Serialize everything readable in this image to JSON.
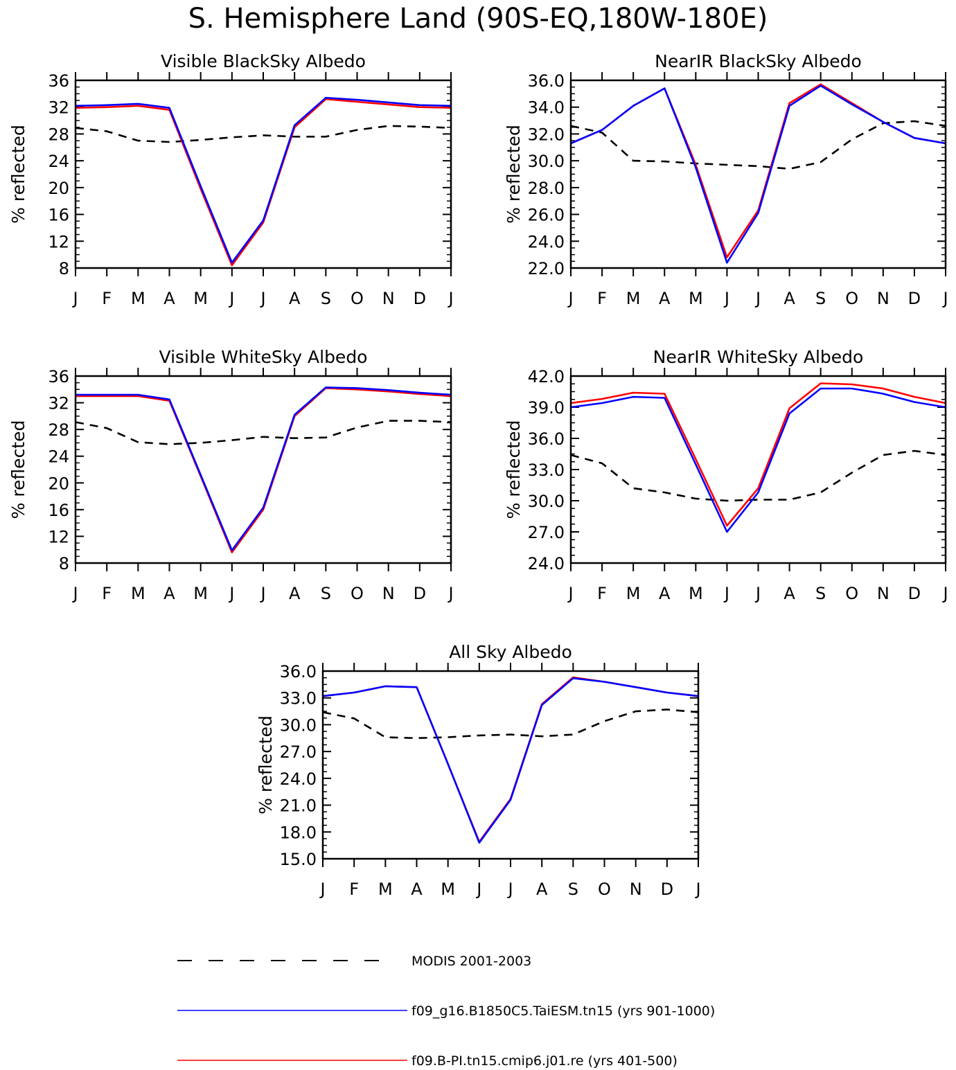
{
  "title": "S. Hemisphere Land (90S-EQ,180W-180E)",
  "colors": {
    "modis": "#000000",
    "taiesm": "#0000ff",
    "cmip6": "#ff0000"
  },
  "legend": [
    {
      "key": "modis",
      "label": "MODIS 2001-2003",
      "style": "dashed"
    },
    {
      "key": "taiesm",
      "label": "f09_g16.B1850C5.TaiESM.tn15 (yrs 901-1000)",
      "style": "solid"
    },
    {
      "key": "cmip6",
      "label": "f09.B-PI.tn15.cmip6.j01.re (yrs 401-500)",
      "style": "solid"
    }
  ],
  "chart_data": [
    {
      "type": "line",
      "title": "Visible BlackSky Albedo",
      "ylabel": "% reflected",
      "categories": [
        "J",
        "F",
        "M",
        "A",
        "M",
        "J",
        "J",
        "A",
        "S",
        "O",
        "N",
        "D",
        "J"
      ],
      "ylim": [
        8,
        36
      ],
      "yticks": [
        "8",
        "12",
        "16",
        "20",
        "24",
        "28",
        "32",
        "36"
      ],
      "series": [
        {
          "key": "modis",
          "values": [
            28.9,
            28.4,
            27.0,
            26.8,
            27.1,
            27.5,
            27.8,
            27.6,
            27.6,
            28.6,
            29.2,
            29.1,
            28.9
          ]
        },
        {
          "key": "cmip6",
          "values": [
            31.9,
            32.0,
            32.2,
            31.6,
            19.8,
            8.4,
            14.8,
            29.0,
            33.2,
            32.8,
            32.4,
            32.0,
            31.9
          ]
        },
        {
          "key": "taiesm",
          "values": [
            32.2,
            32.3,
            32.5,
            31.9,
            20.2,
            8.8,
            15.1,
            29.3,
            33.4,
            33.1,
            32.7,
            32.3,
            32.2
          ]
        }
      ]
    },
    {
      "type": "line",
      "title": "NearIR BlackSky Albedo",
      "ylabel": "% reflected",
      "categories": [
        "J",
        "F",
        "M",
        "A",
        "M",
        "J",
        "J",
        "A",
        "S",
        "O",
        "N",
        "D",
        "J"
      ],
      "ylim": [
        22,
        36
      ],
      "yticks": [
        "22.0",
        "24.0",
        "26.0",
        "28.0",
        "30.0",
        "32.0",
        "34.0",
        "36.0"
      ],
      "series": [
        {
          "key": "modis",
          "values": [
            32.6,
            32.1,
            30.0,
            29.95,
            29.8,
            29.7,
            29.6,
            29.4,
            29.9,
            31.6,
            32.8,
            32.95,
            32.6
          ]
        },
        {
          "key": "cmip6",
          "values": [
            31.3,
            32.3,
            34.1,
            35.4,
            29.7,
            22.8,
            26.3,
            34.3,
            35.7,
            34.3,
            32.9,
            31.7,
            31.3
          ]
        },
        {
          "key": "taiesm",
          "values": [
            31.3,
            32.3,
            34.1,
            35.4,
            29.5,
            22.4,
            26.1,
            34.1,
            35.6,
            34.2,
            32.9,
            31.7,
            31.3
          ]
        }
      ]
    },
    {
      "type": "line",
      "title": "Visible WhiteSky Albedo",
      "ylabel": "% reflected",
      "categories": [
        "J",
        "F",
        "M",
        "A",
        "M",
        "J",
        "J",
        "A",
        "S",
        "O",
        "N",
        "D",
        "J"
      ],
      "ylim": [
        8,
        36
      ],
      "yticks": [
        "8",
        "12",
        "16",
        "20",
        "24",
        "28",
        "32",
        "36"
      ],
      "series": [
        {
          "key": "modis",
          "values": [
            29.1,
            28.2,
            26.1,
            25.8,
            26.0,
            26.4,
            26.9,
            26.7,
            26.8,
            28.3,
            29.3,
            29.3,
            29.1
          ]
        },
        {
          "key": "cmip6",
          "values": [
            33.0,
            33.0,
            33.0,
            32.3,
            21.0,
            9.6,
            16.0,
            30.0,
            34.2,
            34.0,
            33.7,
            33.3,
            33.0
          ]
        },
        {
          "key": "taiesm",
          "values": [
            33.2,
            33.2,
            33.2,
            32.5,
            21.2,
            9.9,
            16.3,
            30.2,
            34.3,
            34.2,
            33.9,
            33.5,
            33.2
          ]
        }
      ]
    },
    {
      "type": "line",
      "title": "NearIR WhiteSky Albedo",
      "ylabel": "% reflected",
      "categories": [
        "J",
        "F",
        "M",
        "A",
        "M",
        "J",
        "J",
        "A",
        "S",
        "O",
        "N",
        "D",
        "J"
      ],
      "ylim": [
        24,
        42
      ],
      "yticks": [
        "24.0",
        "27.0",
        "30.0",
        "33.0",
        "36.0",
        "39.0",
        "42.0"
      ],
      "series": [
        {
          "key": "modis",
          "values": [
            34.4,
            33.6,
            31.2,
            30.8,
            30.2,
            30.0,
            30.1,
            30.1,
            30.8,
            32.7,
            34.4,
            34.8,
            34.4
          ]
        },
        {
          "key": "cmip6",
          "values": [
            39.4,
            39.8,
            40.4,
            40.3,
            34.0,
            27.6,
            31.2,
            38.9,
            41.3,
            41.2,
            40.8,
            40.0,
            39.4
          ]
        },
        {
          "key": "taiesm",
          "values": [
            39.0,
            39.4,
            40.0,
            39.9,
            33.5,
            27.0,
            30.8,
            38.4,
            40.8,
            40.8,
            40.3,
            39.5,
            39.0
          ]
        }
      ]
    },
    {
      "type": "line",
      "title": "All Sky Albedo",
      "ylabel": "% reflected",
      "categories": [
        "J",
        "F",
        "M",
        "A",
        "M",
        "J",
        "J",
        "A",
        "S",
        "O",
        "N",
        "D",
        "J"
      ],
      "ylim": [
        15,
        36
      ],
      "yticks": [
        "15.0",
        "18.0",
        "21.0",
        "24.0",
        "27.0",
        "30.0",
        "33.0",
        "36.0"
      ],
      "series": [
        {
          "key": "modis",
          "values": [
            31.4,
            30.7,
            28.6,
            28.5,
            28.6,
            28.8,
            28.9,
            28.7,
            28.9,
            30.4,
            31.5,
            31.7,
            31.4
          ]
        },
        {
          "key": "cmip6",
          "values": [
            33.2,
            33.6,
            34.3,
            34.2,
            25.6,
            16.9,
            21.7,
            32.3,
            35.3,
            34.8,
            34.2,
            33.6,
            33.2
          ]
        },
        {
          "key": "taiesm",
          "values": [
            33.2,
            33.6,
            34.3,
            34.2,
            25.6,
            16.8,
            21.6,
            32.2,
            35.2,
            34.8,
            34.2,
            33.6,
            33.2
          ]
        }
      ]
    }
  ]
}
